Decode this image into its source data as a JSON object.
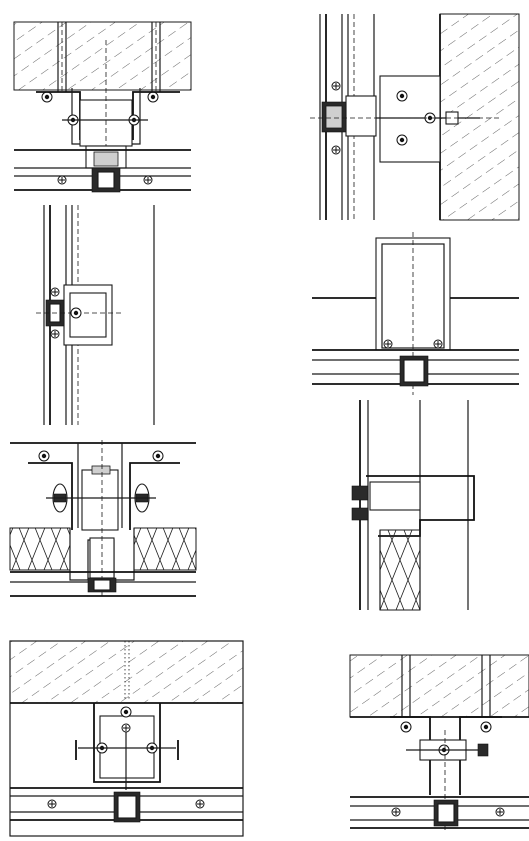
{
  "drawing": {
    "kind": "curtain wall mullion construction details",
    "details": [
      {
        "id": "top-left"
      },
      {
        "id": "middle-left"
      },
      {
        "id": "lower-left"
      },
      {
        "id": "bottom-left"
      },
      {
        "id": "top-right"
      },
      {
        "id": "middle-right"
      },
      {
        "id": "lower-right"
      },
      {
        "id": "bottom-right"
      }
    ]
  }
}
